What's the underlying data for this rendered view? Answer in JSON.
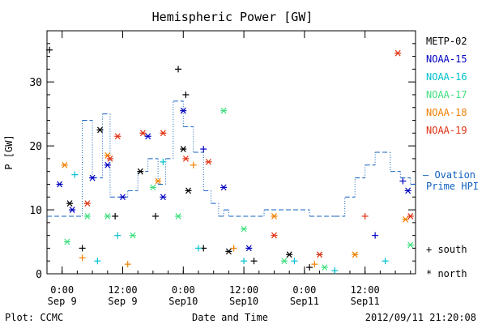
{
  "chart_data": {
    "type": "scatter",
    "title": "Hemispheric Power [GW]",
    "xlabel": "Date and Time",
    "ylabel": "P [GW]",
    "xlim": [
      "2012-09-08 21:00",
      "2012-09-11 22:00"
    ],
    "ylim": [
      0,
      38
    ],
    "yticks": [
      0,
      10,
      20,
      30
    ],
    "xticks": [
      {
        "t": "2012-09-09 00:00",
        "line1": "0:00",
        "line2": "Sep 9"
      },
      {
        "t": "2012-09-09 12:00",
        "line1": "12:00",
        "line2": "Sep 9"
      },
      {
        "t": "2012-09-10 00:00",
        "line1": "0:00",
        "line2": "Sep10"
      },
      {
        "t": "2012-09-10 12:00",
        "line1": "12:00",
        "line2": "Sep10"
      },
      {
        "t": "2012-09-11 00:00",
        "line1": "0:00",
        "line2": "Sep11"
      },
      {
        "t": "2012-09-11 12:00",
        "line1": "12:00",
        "line2": "Sep11"
      }
    ],
    "grid": false,
    "legend_position": "right",
    "marker_legend": {
      "south": "+ south",
      "north": "* north"
    },
    "series": [
      {
        "name": "METP-02",
        "color": "#000000",
        "points": [
          {
            "t": "2012-09-08 21:30",
            "y": 35,
            "m": "+"
          },
          {
            "t": "2012-09-09 01:30",
            "y": 11,
            "m": "*"
          },
          {
            "t": "2012-09-09 04:00",
            "y": 4,
            "m": "+"
          },
          {
            "t": "2012-09-09 07:30",
            "y": 22.5,
            "m": "*"
          },
          {
            "t": "2012-09-09 10:30",
            "y": 9,
            "m": "+"
          },
          {
            "t": "2012-09-09 15:30",
            "y": 16,
            "m": "*"
          },
          {
            "t": "2012-09-09 18:30",
            "y": 9,
            "m": "+"
          },
          {
            "t": "2012-09-09 23:00",
            "y": 32,
            "m": "+"
          },
          {
            "t": "2012-09-10 00:00",
            "y": 19.5,
            "m": "*"
          },
          {
            "t": "2012-09-10 00:30",
            "y": 28,
            "m": "+"
          },
          {
            "t": "2012-09-10 01:00",
            "y": 13,
            "m": "*"
          },
          {
            "t": "2012-09-10 04:00",
            "y": 4,
            "m": "+"
          },
          {
            "t": "2012-09-10 09:00",
            "y": 3.5,
            "m": "*"
          },
          {
            "t": "2012-09-10 14:00",
            "y": 2,
            "m": "+"
          },
          {
            "t": "2012-09-10 21:00",
            "y": 3,
            "m": "*"
          },
          {
            "t": "2012-09-11 01:00",
            "y": 1,
            "m": "+"
          }
        ]
      },
      {
        "name": "NOAA-15",
        "color": "#0000c0",
        "points": [
          {
            "t": "2012-09-08 23:30",
            "y": 14,
            "m": "*"
          },
          {
            "t": "2012-09-09 02:00",
            "y": 10,
            "m": "*"
          },
          {
            "t": "2012-09-09 06:00",
            "y": 15,
            "m": "*"
          },
          {
            "t": "2012-09-09 09:00",
            "y": 17,
            "m": "*"
          },
          {
            "t": "2012-09-09 12:00",
            "y": 12,
            "m": "*"
          },
          {
            "t": "2012-09-09 17:00",
            "y": 21.5,
            "m": "*"
          },
          {
            "t": "2012-09-09 20:00",
            "y": 12,
            "m": "*"
          },
          {
            "t": "2012-09-10 00:00",
            "y": 25.5,
            "m": "*"
          },
          {
            "t": "2012-09-10 04:00",
            "y": 19.5,
            "m": "+"
          },
          {
            "t": "2012-09-10 08:00",
            "y": 13.5,
            "m": "*"
          },
          {
            "t": "2012-09-10 13:00",
            "y": 4,
            "m": "*"
          },
          {
            "t": "2012-09-11 14:00",
            "y": 6,
            "m": "+"
          },
          {
            "t": "2012-09-11 19:30",
            "y": 14.5,
            "m": "+"
          },
          {
            "t": "2012-09-11 20:30",
            "y": 13,
            "m": "*"
          }
        ]
      },
      {
        "name": "NOAA-16",
        "color": "#00c0d0",
        "points": [
          {
            "t": "2012-09-09 02:30",
            "y": 15.5,
            "m": "+"
          },
          {
            "t": "2012-09-09 07:00",
            "y": 2,
            "m": "+"
          },
          {
            "t": "2012-09-09 11:00",
            "y": 6,
            "m": "+"
          },
          {
            "t": "2012-09-09 20:00",
            "y": 17.5,
            "m": "+"
          },
          {
            "t": "2012-09-10 03:00",
            "y": 4,
            "m": "+"
          },
          {
            "t": "2012-09-10 12:00",
            "y": 2,
            "m": "+"
          },
          {
            "t": "2012-09-10 22:00",
            "y": 2,
            "m": "+"
          },
          {
            "t": "2012-09-11 06:00",
            "y": 0.5,
            "m": "+"
          },
          {
            "t": "2012-09-11 16:00",
            "y": 2,
            "m": "+"
          }
        ]
      },
      {
        "name": "NOAA-17",
        "color": "#40e080",
        "points": [
          {
            "t": "2012-09-09 01:00",
            "y": 5,
            "m": "*"
          },
          {
            "t": "2012-09-09 05:00",
            "y": 9,
            "m": "*"
          },
          {
            "t": "2012-09-09 09:00",
            "y": 9,
            "m": "*"
          },
          {
            "t": "2012-09-09 14:00",
            "y": 6,
            "m": "*"
          },
          {
            "t": "2012-09-09 18:00",
            "y": 13.5,
            "m": "*"
          },
          {
            "t": "2012-09-09 23:00",
            "y": 9,
            "m": "*"
          },
          {
            "t": "2012-09-10 08:00",
            "y": 25.5,
            "m": "*"
          },
          {
            "t": "2012-09-10 12:00",
            "y": 7,
            "m": "*"
          },
          {
            "t": "2012-09-10 20:00",
            "y": 2,
            "m": "*"
          },
          {
            "t": "2012-09-11 04:00",
            "y": 1,
            "m": "*"
          },
          {
            "t": "2012-09-11 21:00",
            "y": 4.5,
            "m": "*"
          }
        ]
      },
      {
        "name": "NOAA-18",
        "color": "#f08000",
        "points": [
          {
            "t": "2012-09-09 00:30",
            "y": 17,
            "m": "*"
          },
          {
            "t": "2012-09-09 04:00",
            "y": 2.5,
            "m": "+"
          },
          {
            "t": "2012-09-09 09:00",
            "y": 18.5,
            "m": "*"
          },
          {
            "t": "2012-09-09 13:00",
            "y": 1.5,
            "m": "+"
          },
          {
            "t": "2012-09-09 19:00",
            "y": 14.5,
            "m": "*"
          },
          {
            "t": "2012-09-10 02:00",
            "y": 17,
            "m": "+"
          },
          {
            "t": "2012-09-10 10:00",
            "y": 4,
            "m": "+"
          },
          {
            "t": "2012-09-10 18:00",
            "y": 9,
            "m": "*"
          },
          {
            "t": "2012-09-11 02:00",
            "y": 1.5,
            "m": "+"
          },
          {
            "t": "2012-09-11 10:00",
            "y": 3,
            "m": "*"
          },
          {
            "t": "2012-09-11 20:00",
            "y": 8.5,
            "m": "*"
          }
        ]
      },
      {
        "name": "NOAA-19",
        "color": "#e03010",
        "points": [
          {
            "t": "2012-09-09 05:00",
            "y": 11,
            "m": "*"
          },
          {
            "t": "2012-09-09 09:30",
            "y": 18,
            "m": "*"
          },
          {
            "t": "2012-09-09 11:00",
            "y": 21.5,
            "m": "*"
          },
          {
            "t": "2012-09-09 16:00",
            "y": 22,
            "m": "*"
          },
          {
            "t": "2012-09-09 20:00",
            "y": 22,
            "m": "*"
          },
          {
            "t": "2012-09-10 00:30",
            "y": 18,
            "m": "*"
          },
          {
            "t": "2012-09-10 05:00",
            "y": 17.5,
            "m": "*"
          },
          {
            "t": "2012-09-10 18:00",
            "y": 6,
            "m": "*"
          },
          {
            "t": "2012-09-11 03:00",
            "y": 3,
            "m": "*"
          },
          {
            "t": "2012-09-11 12:00",
            "y": 9,
            "m": "+"
          },
          {
            "t": "2012-09-11 18:30",
            "y": 34.5,
            "m": "*"
          },
          {
            "t": "2012-09-11 21:00",
            "y": 9,
            "m": "*"
          }
        ]
      }
    ],
    "hpi_series": {
      "name": "Ovation Prime HPI",
      "legend_label": [
        "— Ovation",
        "Prime HPI"
      ],
      "color": "#1060c0",
      "steps": [
        {
          "t": "2012-09-08 21:00",
          "y": 9
        },
        {
          "t": "2012-09-09 04:00",
          "y": 24
        },
        {
          "t": "2012-09-09 06:00",
          "y": 15
        },
        {
          "t": "2012-09-09 08:00",
          "y": 25
        },
        {
          "t": "2012-09-09 09:30",
          "y": 12
        },
        {
          "t": "2012-09-09 13:00",
          "y": 13
        },
        {
          "t": "2012-09-09 15:00",
          "y": 16
        },
        {
          "t": "2012-09-09 17:00",
          "y": 18
        },
        {
          "t": "2012-09-09 19:00",
          "y": 14
        },
        {
          "t": "2012-09-09 20:30",
          "y": 18
        },
        {
          "t": "2012-09-09 22:00",
          "y": 27
        },
        {
          "t": "2012-09-10 00:00",
          "y": 23
        },
        {
          "t": "2012-09-10 02:00",
          "y": 19
        },
        {
          "t": "2012-09-10 04:00",
          "y": 13
        },
        {
          "t": "2012-09-10 05:30",
          "y": 11
        },
        {
          "t": "2012-09-10 07:00",
          "y": 9
        },
        {
          "t": "2012-09-10 08:00",
          "y": 10
        },
        {
          "t": "2012-09-10 09:00",
          "y": 9
        },
        {
          "t": "2012-09-10 16:00",
          "y": 10
        },
        {
          "t": "2012-09-11 01:00",
          "y": 9
        },
        {
          "t": "2012-09-11 06:00",
          "y": 9
        },
        {
          "t": "2012-09-11 08:00",
          "y": 12
        },
        {
          "t": "2012-09-11 10:00",
          "y": 15
        },
        {
          "t": "2012-09-11 12:00",
          "y": 17
        },
        {
          "t": "2012-09-11 14:00",
          "y": 19
        },
        {
          "t": "2012-09-11 17:00",
          "y": 16
        },
        {
          "t": "2012-09-11 19:00",
          "y": 15
        },
        {
          "t": "2012-09-11 21:00",
          "y": 14
        },
        {
          "t": "2012-09-11 22:00",
          "y": 14
        }
      ]
    }
  },
  "footer": {
    "left": "Plot: CCMC",
    "timestamp": "2012/09/11 21:20:08"
  }
}
